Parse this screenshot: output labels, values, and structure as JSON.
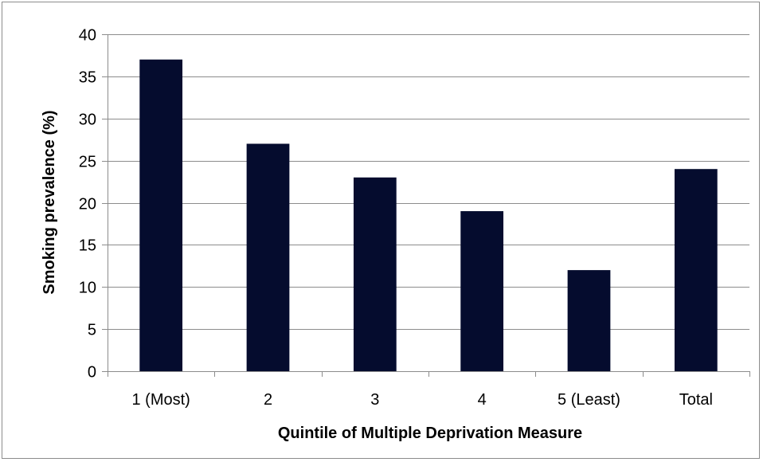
{
  "chart_data": {
    "type": "bar",
    "categories": [
      "1 (Most)",
      "2",
      "3",
      "4",
      "5 (Least)",
      "Total"
    ],
    "values": [
      37,
      27,
      23,
      19,
      12,
      24
    ],
    "title": "",
    "xlabel": "Quintile of Multiple Deprivation Measure",
    "ylabel": "Smoking prevalence (%)",
    "ylim": [
      0,
      40
    ],
    "yticks": [
      0,
      5,
      10,
      15,
      20,
      25,
      30,
      35,
      40
    ],
    "grid": true,
    "legend": "none",
    "bar_color": "#050c2e",
    "grid_color": "#8c8c8c"
  }
}
